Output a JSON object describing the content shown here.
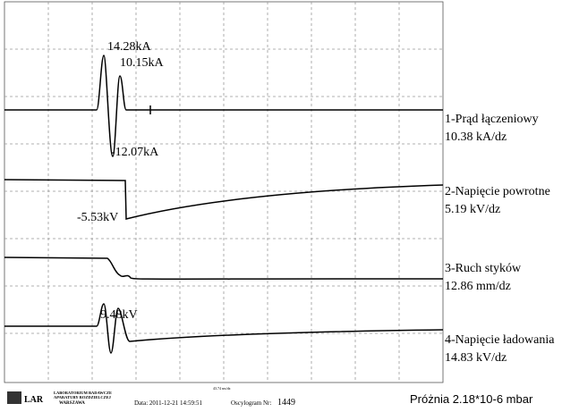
{
  "annotations": {
    "peak_1": "14.28kA",
    "peak_2": "10.15kA",
    "trough_1": "-12.07kA",
    "voltage_drop": "-5.53kV",
    "charge_peak": "9.48kV"
  },
  "channels": [
    {
      "name": "1-Prąd łączeniowy",
      "scale": "10.38 kA/dz"
    },
    {
      "name": "2-Napięcie powrotne",
      "scale": "5.19 kV/dz"
    },
    {
      "name": "3-Ruch styków",
      "scale": "12.86 mm/dz"
    },
    {
      "name": "4-Napięcie ładowania",
      "scale": "14.83 kV/dz"
    }
  ],
  "footer": {
    "logo": "LAR",
    "lab_line_1": "LABORATORIUM BADAWCZE",
    "lab_line_2": "APARATURY ROZDZIELCZEJ",
    "lab_line_3": "WARSZAWA",
    "time_scale": "43.74 ms/dz",
    "date": "Data: 2011-12-21  14:59:51",
    "number_label": "Oscylogram Nr:",
    "number": "1449",
    "vacuum": "Próżnia 2.18*10-6 mbar"
  }
}
